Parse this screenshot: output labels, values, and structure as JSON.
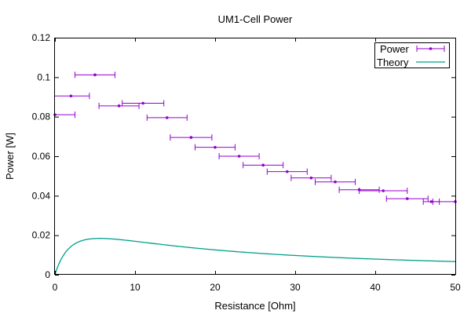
{
  "chart_data": {
    "type": "scatter",
    "title": "UM1-Cell Power",
    "xlabel": "Resistance [Ohm]",
    "ylabel": "Power [W]",
    "xlim": [
      0,
      50
    ],
    "ylim": [
      0,
      0.12
    ],
    "xticks": [
      0,
      10,
      20,
      30,
      40,
      50
    ],
    "yticks": [
      0,
      0.02,
      0.04,
      0.06,
      0.08,
      0.1,
      0.12
    ],
    "xtick_labels": [
      "0",
      "10",
      "20",
      "30",
      "40",
      "50"
    ],
    "ytick_labels": [
      "0",
      "0.02",
      "0.04",
      "0.06",
      "0.08",
      "0.1",
      "0.12"
    ],
    "grid": false,
    "legend_position": "top-right",
    "series": [
      {
        "name": "Power",
        "kind": "points-with-x-errorbars",
        "color": "#9400d3",
        "points": [
          {
            "x": 0.0,
            "y": 0.081,
            "xerr": 2.5
          },
          {
            "x": 2.0,
            "y": 0.0905,
            "xerr": 2.3
          },
          {
            "x": 5.0,
            "y": 0.1012,
            "xerr": 2.5
          },
          {
            "x": 8.0,
            "y": 0.0855,
            "xerr": 2.5
          },
          {
            "x": 11.0,
            "y": 0.0868,
            "xerr": 2.6
          },
          {
            "x": 14.0,
            "y": 0.0795,
            "xerr": 2.5
          },
          {
            "x": 17.0,
            "y": 0.0695,
            "xerr": 2.6
          },
          {
            "x": 20.0,
            "y": 0.0645,
            "xerr": 2.5
          },
          {
            "x": 23.0,
            "y": 0.06,
            "xerr": 2.5
          },
          {
            "x": 26.0,
            "y": 0.0555,
            "xerr": 2.5
          },
          {
            "x": 29.0,
            "y": 0.0522,
            "xerr": 2.5
          },
          {
            "x": 32.0,
            "y": 0.049,
            "xerr": 2.5
          },
          {
            "x": 35.0,
            "y": 0.047,
            "xerr": 2.5
          },
          {
            "x": 38.0,
            "y": 0.043,
            "xerr": 2.5
          },
          {
            "x": 41.0,
            "y": 0.0425,
            "xerr": 3.0
          },
          {
            "x": 44.0,
            "y": 0.0385,
            "xerr": 2.6
          },
          {
            "x": 47.0,
            "y": 0.037,
            "xerr": 1.0
          },
          {
            "x": 50.0,
            "y": 0.037,
            "xerr": 2.8
          }
        ]
      },
      {
        "name": "Theory",
        "kind": "line",
        "color": "#00a08a",
        "model": {
          "a": 0.4121,
          "r0": 5.6
        }
      }
    ]
  }
}
